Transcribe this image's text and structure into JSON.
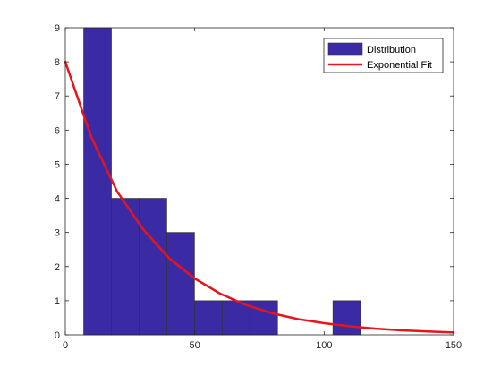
{
  "chart_data": {
    "type": "bar",
    "title": "",
    "xlabel": "",
    "ylabel": "",
    "xlim": [
      0,
      150
    ],
    "ylim": [
      0,
      9
    ],
    "xticks": [
      0,
      50,
      100,
      150
    ],
    "yticks": [
      0,
      1,
      2,
      3,
      4,
      5,
      6,
      7,
      8,
      9
    ],
    "grid": false,
    "legend_position": "top-right",
    "series": [
      {
        "name": "Distribution",
        "kind": "histogram",
        "color": "#3a2ba4",
        "edge_color": "#333333",
        "bins": [
          {
            "x0": 7.1,
            "x1": 17.8,
            "count": 9
          },
          {
            "x0": 17.8,
            "x1": 28.5,
            "count": 4
          },
          {
            "x0": 28.5,
            "x1": 39.2,
            "count": 4
          },
          {
            "x0": 39.2,
            "x1": 49.9,
            "count": 3
          },
          {
            "x0": 49.9,
            "x1": 60.6,
            "count": 1
          },
          {
            "x0": 60.6,
            "x1": 71.3,
            "count": 1
          },
          {
            "x0": 71.3,
            "x1": 82.0,
            "count": 1
          },
          {
            "x0": 82.0,
            "x1": 92.7,
            "count": 0
          },
          {
            "x0": 92.7,
            "x1": 103.4,
            "count": 0
          },
          {
            "x0": 103.4,
            "x1": 114.1,
            "count": 1
          }
        ]
      },
      {
        "name": "Exponential Fit",
        "kind": "line",
        "color": "#e8141b",
        "x": [
          0,
          10,
          20,
          30,
          40,
          50,
          60,
          70,
          80,
          90,
          100,
          110,
          120,
          130,
          140,
          150
        ],
        "values": [
          8.0,
          5.8,
          4.2,
          3.1,
          2.25,
          1.65,
          1.2,
          0.87,
          0.63,
          0.46,
          0.34,
          0.25,
          0.18,
          0.13,
          0.1,
          0.07
        ]
      }
    ]
  }
}
